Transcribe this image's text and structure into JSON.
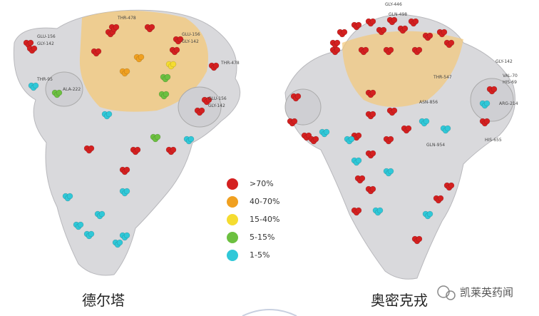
{
  "legend": {
    "items": [
      {
        "label": ">70%",
        "color": "#d42020"
      },
      {
        "label": "40-70%",
        "color": "#f0a020"
      },
      {
        "label": "15-40%",
        "color": "#f5dc30"
      },
      {
        "label": "5-15%",
        "color": "#6cc040"
      },
      {
        "label": "1-5%",
        "color": "#30c8d8"
      }
    ]
  },
  "panels": [
    {
      "caption": "德尔塔",
      "residues": [
        "GLU-156",
        "GLY-142",
        "THR-478",
        "GLU-156",
        "GLY-142",
        "THR-478",
        "THR-95",
        "ALA-222",
        "GLU-156",
        "GLY-142"
      ]
    },
    {
      "caption": "奥密克戎",
      "residues": [
        "GLY-446",
        "GLN-498",
        "GLY-142",
        "VAL-70",
        "HIS-69",
        "THR-547",
        "ARG-214",
        "HIS-655",
        "ASN-856",
        "GLN-954"
      ]
    }
  ],
  "watermark": "凯莱英药闻"
}
